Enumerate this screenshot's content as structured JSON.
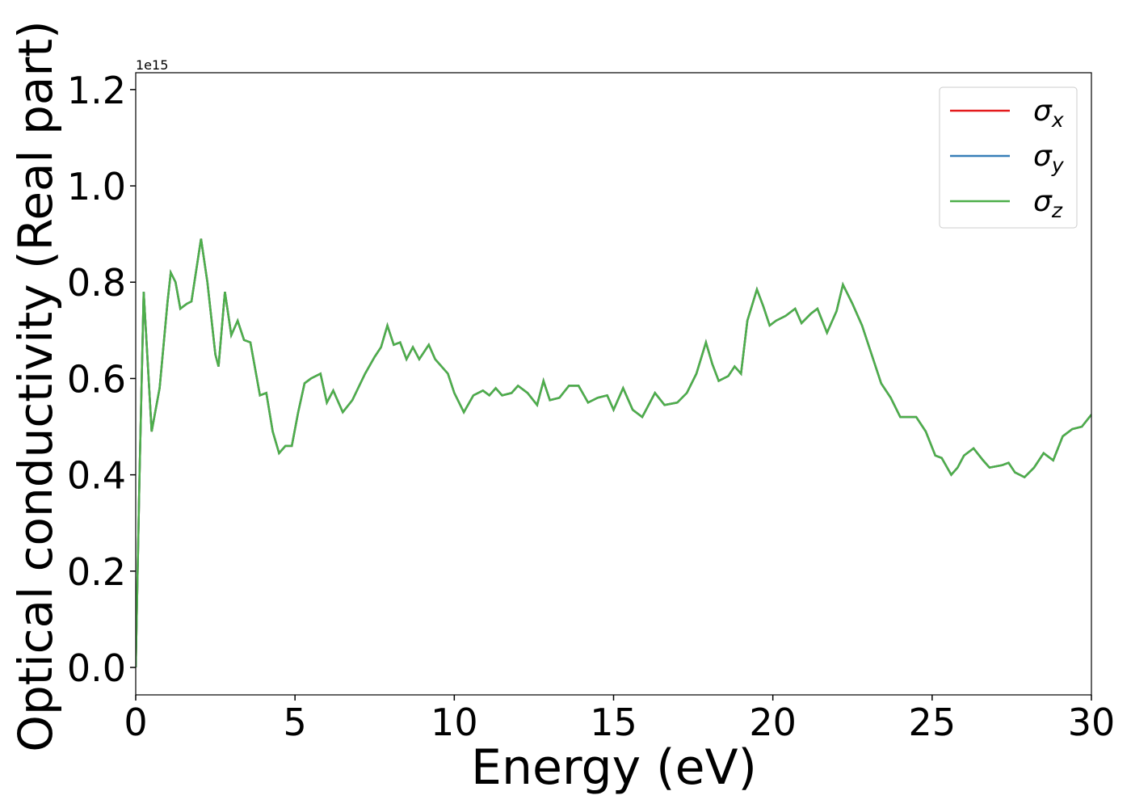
{
  "chart_data": {
    "type": "line",
    "xlabel": "Energy (eV)",
    "ylabel": "Optical conductivity (Real part)",
    "y_offset_label": "1e15",
    "x": [
      0,
      0.12,
      0.25,
      0.5,
      0.75,
      1.0,
      1.1,
      1.25,
      1.4,
      1.6,
      1.75,
      2.05,
      2.25,
      2.5,
      2.6,
      2.8,
      3.0,
      3.2,
      3.4,
      3.6,
      3.9,
      4.1,
      4.3,
      4.5,
      4.7,
      4.9,
      5.1,
      5.3,
      5.5,
      5.8,
      6.0,
      6.2,
      6.5,
      6.8,
      7.2,
      7.5,
      7.7,
      7.9,
      8.1,
      8.3,
      8.5,
      8.7,
      8.9,
      9.2,
      9.4,
      9.8,
      10.0,
      10.3,
      10.6,
      10.9,
      11.1,
      11.3,
      11.5,
      11.8,
      12.0,
      12.3,
      12.6,
      12.8,
      13.0,
      13.3,
      13.6,
      13.9,
      14.2,
      14.5,
      14.8,
      15.0,
      15.3,
      15.6,
      15.9,
      16.3,
      16.6,
      17.0,
      17.3,
      17.6,
      17.9,
      18.1,
      18.3,
      18.6,
      18.8,
      19.0,
      19.2,
      19.5,
      19.7,
      19.9,
      20.1,
      20.4,
      20.7,
      20.9,
      21.2,
      21.4,
      21.7,
      22.0,
      22.2,
      22.5,
      22.8,
      23.1,
      23.4,
      23.7,
      24.0,
      24.3,
      24.5,
      24.8,
      25.1,
      25.3,
      25.6,
      25.8,
      26.0,
      26.3,
      26.6,
      26.8,
      27.2,
      27.4,
      27.6,
      27.9,
      28.2,
      28.5,
      28.8,
      29.1,
      29.4,
      29.7,
      30.0
    ],
    "series": [
      {
        "name": "σx",
        "color": "#e41a1c",
        "values": [
          0.0,
          0.4,
          0.78,
          0.49,
          0.58,
          0.76,
          0.82,
          0.8,
          0.745,
          0.755,
          0.76,
          0.89,
          0.8,
          0.65,
          0.625,
          0.78,
          0.69,
          0.72,
          0.68,
          0.675,
          0.565,
          0.57,
          0.49,
          0.445,
          0.46,
          0.46,
          0.53,
          0.59,
          0.6,
          0.61,
          0.55,
          0.575,
          0.53,
          0.555,
          0.61,
          0.645,
          0.665,
          0.71,
          0.67,
          0.675,
          0.64,
          0.665,
          0.64,
          0.67,
          0.64,
          0.61,
          0.57,
          0.53,
          0.565,
          0.575,
          0.565,
          0.58,
          0.565,
          0.57,
          0.585,
          0.57,
          0.545,
          0.595,
          0.555,
          0.56,
          0.585,
          0.585,
          0.55,
          0.56,
          0.565,
          0.535,
          0.58,
          0.535,
          0.52,
          0.57,
          0.545,
          0.55,
          0.57,
          0.61,
          0.675,
          0.63,
          0.595,
          0.605,
          0.625,
          0.61,
          0.72,
          0.785,
          0.75,
          0.71,
          0.72,
          0.73,
          0.745,
          0.715,
          0.735,
          0.745,
          0.695,
          0.74,
          0.795,
          0.755,
          0.71,
          0.65,
          0.59,
          0.56,
          0.52,
          0.52,
          0.52,
          0.49,
          0.44,
          0.435,
          0.4,
          0.415,
          0.44,
          0.455,
          0.43,
          0.415,
          0.42,
          0.425,
          0.405,
          0.395,
          0.415,
          0.445,
          0.43,
          0.48,
          0.495,
          0.5,
          0.525
        ]
      },
      {
        "name": "σy",
        "color": "#377eb8",
        "values": [
          0.0,
          0.4,
          0.78,
          0.49,
          0.58,
          0.76,
          0.82,
          0.8,
          0.745,
          0.755,
          0.76,
          0.89,
          0.8,
          0.65,
          0.625,
          0.78,
          0.69,
          0.72,
          0.68,
          0.675,
          0.565,
          0.57,
          0.49,
          0.445,
          0.46,
          0.46,
          0.53,
          0.59,
          0.6,
          0.61,
          0.55,
          0.575,
          0.53,
          0.555,
          0.61,
          0.645,
          0.665,
          0.71,
          0.67,
          0.675,
          0.64,
          0.665,
          0.64,
          0.67,
          0.64,
          0.61,
          0.57,
          0.53,
          0.565,
          0.575,
          0.565,
          0.58,
          0.565,
          0.57,
          0.585,
          0.57,
          0.545,
          0.595,
          0.555,
          0.56,
          0.585,
          0.585,
          0.55,
          0.56,
          0.565,
          0.535,
          0.58,
          0.535,
          0.52,
          0.57,
          0.545,
          0.55,
          0.57,
          0.61,
          0.675,
          0.63,
          0.595,
          0.605,
          0.625,
          0.61,
          0.72,
          0.785,
          0.75,
          0.71,
          0.72,
          0.73,
          0.745,
          0.715,
          0.735,
          0.745,
          0.695,
          0.74,
          0.795,
          0.755,
          0.71,
          0.65,
          0.59,
          0.56,
          0.52,
          0.52,
          0.52,
          0.49,
          0.44,
          0.435,
          0.4,
          0.415,
          0.44,
          0.455,
          0.43,
          0.415,
          0.42,
          0.425,
          0.405,
          0.395,
          0.415,
          0.445,
          0.43,
          0.48,
          0.495,
          0.5,
          0.525
        ]
      },
      {
        "name": "σz",
        "color": "#4daf4a",
        "values": [
          0.0,
          0.4,
          0.78,
          0.49,
          0.58,
          0.76,
          0.82,
          0.8,
          0.745,
          0.755,
          0.76,
          0.89,
          0.8,
          0.65,
          0.625,
          0.78,
          0.69,
          0.72,
          0.68,
          0.675,
          0.565,
          0.57,
          0.49,
          0.445,
          0.46,
          0.46,
          0.53,
          0.59,
          0.6,
          0.61,
          0.55,
          0.575,
          0.53,
          0.555,
          0.61,
          0.645,
          0.665,
          0.71,
          0.67,
          0.675,
          0.64,
          0.665,
          0.64,
          0.67,
          0.64,
          0.61,
          0.57,
          0.53,
          0.565,
          0.575,
          0.565,
          0.58,
          0.565,
          0.57,
          0.585,
          0.57,
          0.545,
          0.595,
          0.555,
          0.56,
          0.585,
          0.585,
          0.55,
          0.56,
          0.565,
          0.535,
          0.58,
          0.535,
          0.52,
          0.57,
          0.545,
          0.55,
          0.57,
          0.61,
          0.675,
          0.63,
          0.595,
          0.605,
          0.625,
          0.61,
          0.72,
          0.785,
          0.75,
          0.71,
          0.72,
          0.73,
          0.745,
          0.715,
          0.735,
          0.745,
          0.695,
          0.74,
          0.795,
          0.755,
          0.71,
          0.65,
          0.59,
          0.56,
          0.52,
          0.52,
          0.52,
          0.49,
          0.44,
          0.435,
          0.4,
          0.415,
          0.44,
          0.455,
          0.43,
          0.415,
          0.42,
          0.425,
          0.405,
          0.395,
          0.415,
          0.445,
          0.43,
          0.48,
          0.495,
          0.5,
          0.525
        ]
      }
    ],
    "xlim": [
      0,
      30
    ],
    "xticks": [
      0,
      5,
      10,
      15,
      20,
      25,
      30
    ],
    "ylim": [
      -0.057,
      1.235
    ],
    "yticks": [
      {
        "value": 0,
        "label": "0.0"
      },
      0.2,
      0.4,
      0.6,
      0.8,
      {
        "value": 1,
        "label": "1.0"
      },
      1.2
    ],
    "legend": "upper right",
    "grid": false
  }
}
